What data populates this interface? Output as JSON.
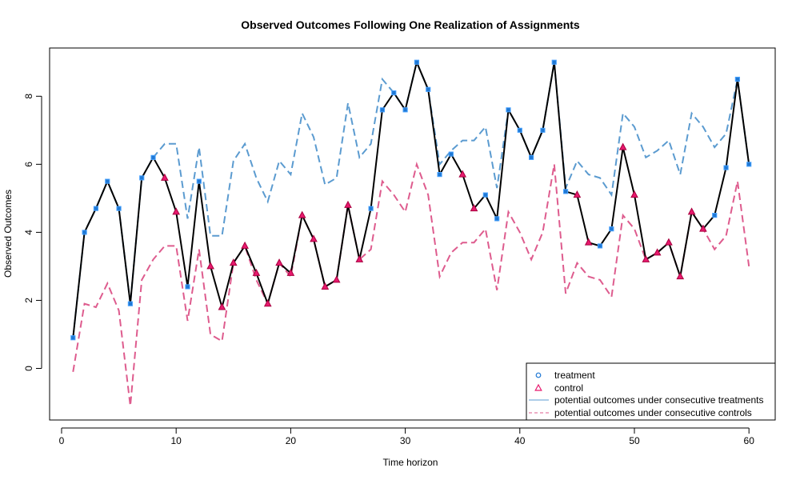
{
  "chart_data": {
    "type": "line",
    "title": "Observed Outcomes Following One Realization of Assignments",
    "xlabel": "Time horizon",
    "ylabel": "Observed Outcomes",
    "xlim": [
      1,
      60
    ],
    "ylim": [
      -1.5,
      9.3
    ],
    "xticks": [
      0,
      10,
      20,
      30,
      40,
      50,
      60
    ],
    "yticks": [
      0,
      2,
      4,
      6,
      8
    ],
    "legend_position": "bottom-right",
    "colors": {
      "treatment": "#1f78d4",
      "control": "#e8196e",
      "potential_treated": "#5b9bd0",
      "potential_control": "#de5c8e",
      "observed_line": "#000000"
    },
    "legend": [
      {
        "label": "treatment",
        "key": "treatment"
      },
      {
        "label": "control",
        "key": "control"
      },
      {
        "label": "potential outcomes under consecutive treatments",
        "key": "potential_treated"
      },
      {
        "label": "potential outcomes under consecutive controls",
        "key": "potential_control"
      }
    ],
    "x": [
      1,
      2,
      3,
      4,
      5,
      6,
      7,
      8,
      9,
      10,
      11,
      12,
      13,
      14,
      15,
      16,
      17,
      18,
      19,
      20,
      21,
      22,
      23,
      24,
      25,
      26,
      27,
      28,
      29,
      30,
      31,
      32,
      33,
      34,
      35,
      36,
      37,
      38,
      39,
      40,
      41,
      42,
      43,
      44,
      45,
      46,
      47,
      48,
      49,
      50,
      51,
      52,
      53,
      54,
      55,
      56,
      57,
      58,
      59,
      60
    ],
    "observed": [
      0.9,
      4.0,
      4.7,
      5.5,
      4.7,
      1.9,
      5.6,
      6.2,
      5.6,
      4.6,
      2.4,
      5.5,
      3.0,
      1.8,
      3.1,
      3.6,
      2.8,
      1.9,
      3.1,
      2.8,
      4.5,
      3.8,
      2.4,
      2.6,
      4.8,
      3.2,
      4.7,
      7.6,
      8.1,
      7.6,
      9.0,
      8.2,
      5.7,
      6.3,
      5.7,
      4.7,
      5.1,
      4.4,
      7.6,
      7.0,
      6.2,
      7.0,
      9.0,
      5.2,
      5.1,
      3.7,
      3.6,
      4.1,
      6.5,
      5.1,
      3.2,
      3.4,
      3.7,
      2.7,
      4.6,
      4.1,
      4.5,
      5.9,
      8.5,
      6.0
    ],
    "assignment": [
      "T",
      "T",
      "T",
      "T",
      "T",
      "T",
      "T",
      "T",
      "C",
      "C",
      "T",
      "T",
      "C",
      "C",
      "C",
      "C",
      "C",
      "C",
      "C",
      "C",
      "C",
      "C",
      "C",
      "C",
      "C",
      "C",
      "T",
      "T",
      "T",
      "T",
      "T",
      "T",
      "T",
      "T",
      "C",
      "C",
      "T",
      "T",
      "T",
      "T",
      "T",
      "T",
      "T",
      "T",
      "C",
      "C",
      "T",
      "T",
      "C",
      "C",
      "C",
      "C",
      "C",
      "C",
      "C",
      "C",
      "T",
      "T",
      "T",
      "T"
    ],
    "potential_treated": [
      0.9,
      4.0,
      4.7,
      5.5,
      4.7,
      1.9,
      5.6,
      6.2,
      6.6,
      6.6,
      4.4,
      6.5,
      3.9,
      3.9,
      6.1,
      6.6,
      5.6,
      4.9,
      6.1,
      5.7,
      7.5,
      6.8,
      5.4,
      5.6,
      7.8,
      6.2,
      6.6,
      8.5,
      8.1,
      7.6,
      9.0,
      8.2,
      6.0,
      6.4,
      6.7,
      6.7,
      7.1,
      5.3,
      7.6,
      7.0,
      6.2,
      7.0,
      9.0,
      5.3,
      6.1,
      5.7,
      5.6,
      5.1,
      7.5,
      7.1,
      6.2,
      6.4,
      6.7,
      5.7,
      7.5,
      7.1,
      6.5,
      6.9,
      8.5,
      6.0
    ],
    "potential_control": [
      -0.1,
      1.9,
      1.8,
      2.5,
      1.7,
      -1.1,
      2.6,
      3.2,
      3.6,
      3.6,
      1.4,
      3.5,
      1.0,
      0.8,
      3.1,
      3.6,
      2.6,
      1.9,
      3.1,
      2.7,
      4.5,
      3.8,
      2.4,
      2.6,
      4.8,
      3.2,
      3.5,
      5.5,
      5.1,
      4.6,
      6.0,
      5.1,
      2.7,
      3.4,
      3.7,
      3.7,
      4.1,
      2.3,
      4.6,
      4.0,
      3.2,
      4.0,
      6.0,
      2.2,
      3.1,
      2.7,
      2.6,
      2.1,
      4.5,
      4.1,
      3.2,
      3.4,
      3.7,
      2.7,
      4.6,
      4.1,
      3.5,
      3.9,
      5.5,
      3.0
    ]
  }
}
